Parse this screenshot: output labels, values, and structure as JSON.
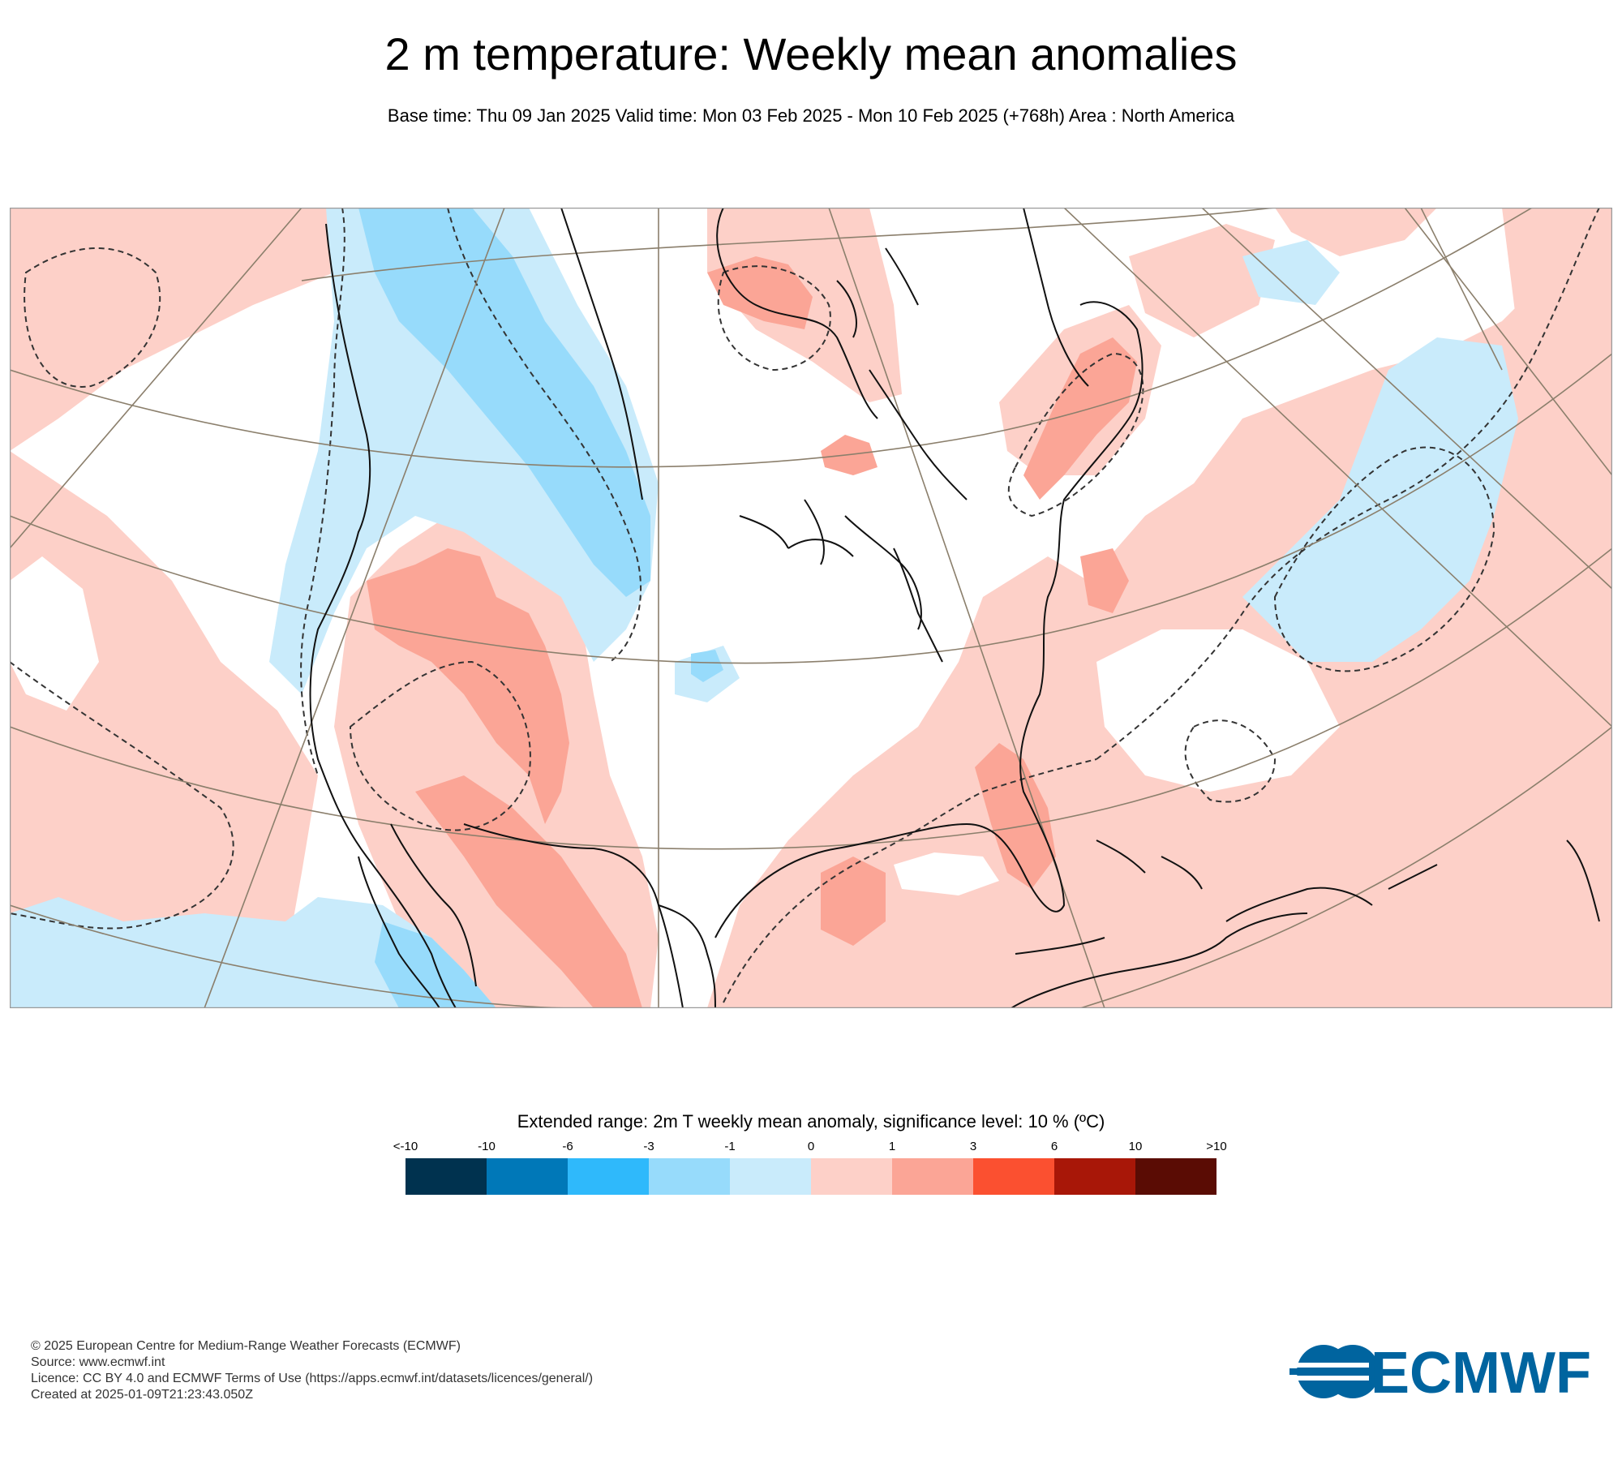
{
  "header": {
    "title": "2 m temperature: Weekly mean anomalies",
    "subtitle": "Base time: Thu 09 Jan 2025 Valid time: Mon 03 Feb 2025 - Mon 10 Feb 2025 (+768h) Area : North America"
  },
  "map": {
    "region": "North America",
    "colors": {
      "neg1_0": "#c9ebfb",
      "neg3_neg1": "#97dbfb",
      "pos0_1": "#fdd0c8",
      "pos1_3": "#fba596",
      "coast": "#111111",
      "graticule": "#8b7f6c",
      "frame": "#9a9a9a"
    }
  },
  "legend": {
    "title": "Extended range: 2m T weekly mean anomaly, significance level: 10 % (ºC)",
    "ticks": [
      "<-10",
      "-10",
      "-6",
      "-3",
      "-1",
      "0",
      "1",
      "3",
      "6",
      "10",
      ">10"
    ],
    "colors": [
      "#00324f",
      "#0078b8",
      "#2fb9fb",
      "#97dbfb",
      "#c9ebfb",
      "#fdd0c8",
      "#fba596",
      "#fb5030",
      "#a81708",
      "#5a0c04"
    ]
  },
  "footer": {
    "copyright": "© 2025 European Centre for Medium-Range Weather Forecasts (ECMWF)",
    "source": "Source: www.ecmwf.int",
    "licence": "Licence: CC BY 4.0 and ECMWF Terms of Use (https://apps.ecmwf.int/datasets/licences/general/)",
    "created": "Created at 2025-01-09T21:23:43.050Z"
  },
  "logo": {
    "text": "ECMWF",
    "color": "#00649f"
  }
}
